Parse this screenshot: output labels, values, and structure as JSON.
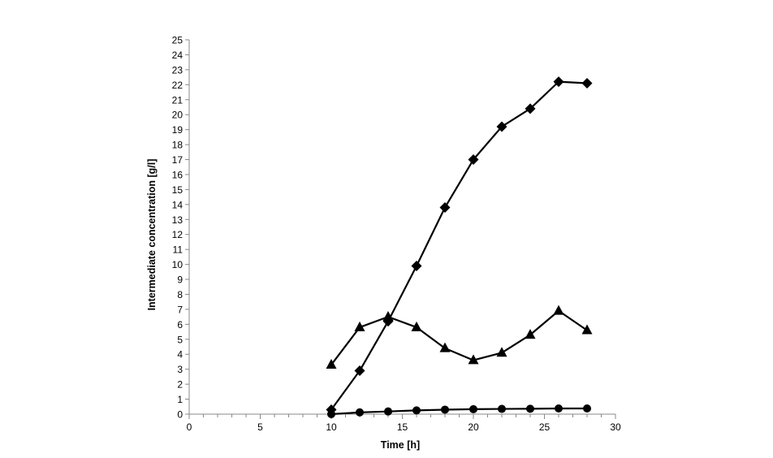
{
  "chart_data": {
    "type": "line",
    "title": "",
    "xlabel": "Time [h]",
    "ylabel": "Intermediate concentration [g/l]",
    "xlim": [
      0,
      30
    ],
    "ylim": [
      0,
      25
    ],
    "x_major_step": 5,
    "x_minor_step": 1,
    "y_major_step": 1,
    "grid": false,
    "legend": "none",
    "colors": {
      "line": "#000000",
      "axis": "#888888",
      "background": "#ffffff"
    },
    "series": [
      {
        "name": "diamond-series",
        "marker": "diamond",
        "x": [
          10,
          12,
          14,
          16,
          18,
          20,
          22,
          24,
          26,
          28
        ],
        "y": [
          0.3,
          2.9,
          6.2,
          9.9,
          13.8,
          17.0,
          19.2,
          20.4,
          22.2,
          22.1
        ]
      },
      {
        "name": "triangle-series",
        "marker": "triangle",
        "x": [
          10,
          12,
          14,
          16,
          18,
          20,
          22,
          24,
          26,
          28
        ],
        "y": [
          3.3,
          5.8,
          6.5,
          5.8,
          4.4,
          3.6,
          4.1,
          5.3,
          6.9,
          5.6
        ]
      },
      {
        "name": "circle-series",
        "marker": "circle",
        "x": [
          10,
          12,
          14,
          16,
          18,
          20,
          22,
          24,
          26,
          28
        ],
        "y": [
          0.0,
          0.12,
          0.18,
          0.25,
          0.3,
          0.33,
          0.35,
          0.36,
          0.38,
          0.38
        ]
      }
    ]
  }
}
